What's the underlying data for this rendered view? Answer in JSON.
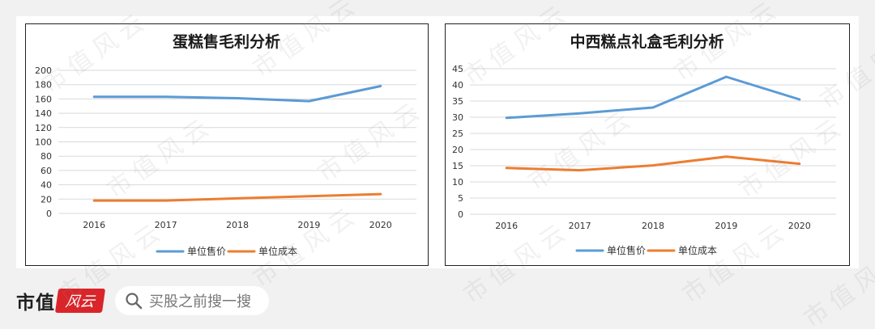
{
  "chart_data": [
    {
      "type": "line",
      "title": "蛋糕售毛利分析",
      "categories": [
        "2016",
        "2017",
        "2018",
        "2019",
        "2020"
      ],
      "series": [
        {
          "name": "单位售价",
          "color": "#5b9bd5",
          "values": [
            163,
            163,
            161,
            157,
            178
          ]
        },
        {
          "name": "单位成本",
          "color": "#ed7d31",
          "values": [
            18,
            18,
            21,
            24,
            27
          ]
        }
      ],
      "ylim": [
        0,
        200
      ],
      "yticks": [
        "0",
        "20",
        "40",
        "60",
        "80",
        "100",
        "120",
        "140",
        "160",
        "180",
        "200"
      ],
      "grid": true,
      "legend": "bottom"
    },
    {
      "type": "line",
      "title": "中西糕点礼盒毛利分析",
      "categories": [
        "2016",
        "2017",
        "2018",
        "2019",
        "2020"
      ],
      "series": [
        {
          "name": "单位售价",
          "color": "#5b9bd5",
          "values": [
            29.8,
            31.2,
            33,
            42.5,
            35.5
          ]
        },
        {
          "name": "单位成本",
          "color": "#ed7d31",
          "values": [
            14.3,
            13.6,
            15.1,
            17.8,
            15.6
          ]
        }
      ],
      "ylim": [
        0,
        45
      ],
      "yticks": [
        "0",
        "5",
        "10",
        "15",
        "20",
        "25",
        "30",
        "35",
        "40",
        "45"
      ],
      "grid": true,
      "legend": "bottom"
    }
  ],
  "footer": {
    "brand": "市值",
    "brand_seal": "风云",
    "search_icon": "search-icon",
    "search_placeholder": "买股之前搜一搜"
  },
  "watermark_text": "市值风云"
}
